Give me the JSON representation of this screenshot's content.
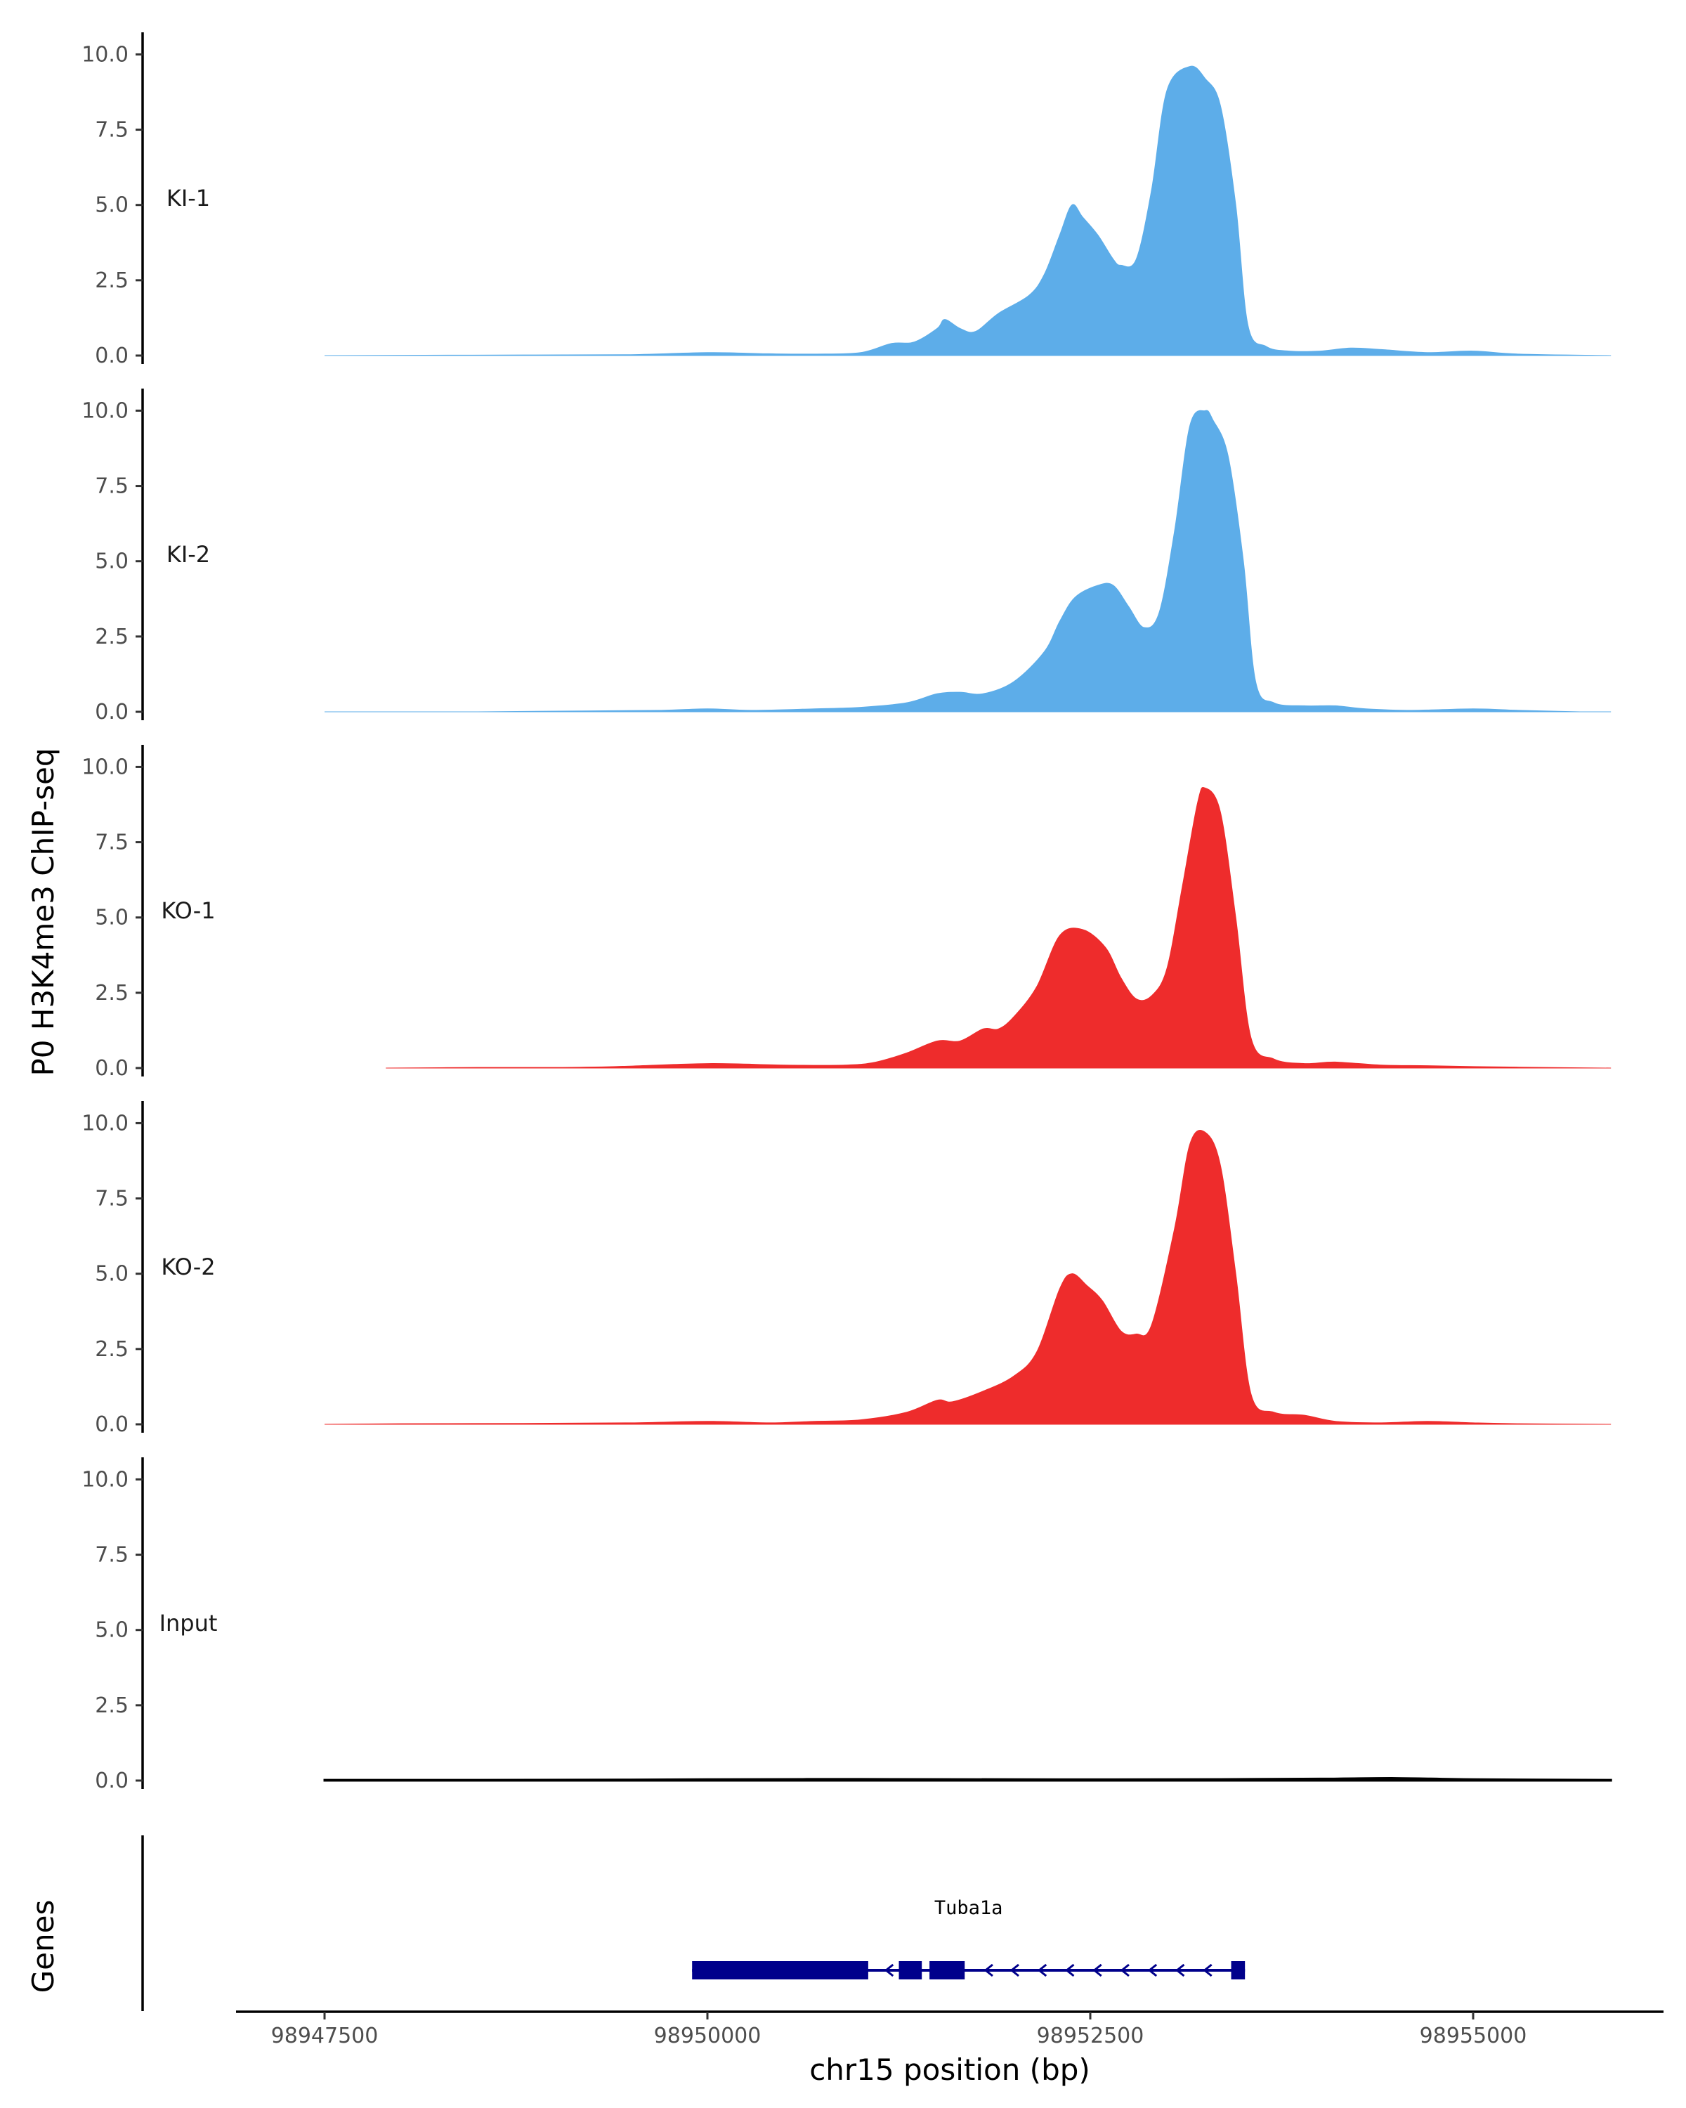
{
  "chart_data": {
    "type": "area",
    "ylabel": "P0 H3K4me3 ChIP-seq",
    "xlabel": "chr15 position (bp)",
    "genes_label": "Genes",
    "ylim": [
      0,
      10.5
    ],
    "y_ticks": [
      "0.0",
      "2.5",
      "5.0",
      "7.5",
      "10.0"
    ],
    "xlim": [
      98946800,
      98956400
    ],
    "x_ticks": [
      98947500,
      98950000,
      98952500,
      98955000
    ],
    "x_tick_labels": [
      "98947500",
      "98950000",
      "98952500",
      "98955000"
    ],
    "grid": false,
    "legend": "none",
    "tracks": [
      {
        "name": "KI-1",
        "color": "#5dade9",
        "x_range": [
          98947500,
          98955900
        ],
        "points": [
          [
            98947500,
            0
          ],
          [
            98948000,
            0.01
          ],
          [
            98948800,
            0.02
          ],
          [
            98949500,
            0.03
          ],
          [
            98950000,
            0.1
          ],
          [
            98950400,
            0.06
          ],
          [
            98950700,
            0.05
          ],
          [
            98951000,
            0.1
          ],
          [
            98951200,
            0.4
          ],
          [
            98951350,
            0.45
          ],
          [
            98951500,
            0.9
          ],
          [
            98951550,
            1.2
          ],
          [
            98951650,
            0.9
          ],
          [
            98951750,
            0.8
          ],
          [
            98951900,
            1.4
          ],
          [
            98952100,
            2.0
          ],
          [
            98952200,
            2.7
          ],
          [
            98952300,
            4.0
          ],
          [
            98952380,
            5.0
          ],
          [
            98952450,
            4.6
          ],
          [
            98952550,
            4.0
          ],
          [
            98952650,
            3.2
          ],
          [
            98952700,
            3.0
          ],
          [
            98952800,
            3.2
          ],
          [
            98952900,
            5.5
          ],
          [
            98953000,
            8.8
          ],
          [
            98953150,
            9.6
          ],
          [
            98953250,
            9.2
          ],
          [
            98953350,
            8.3
          ],
          [
            98953450,
            5.0
          ],
          [
            98953530,
            1.0
          ],
          [
            98953650,
            0.3
          ],
          [
            98953800,
            0.15
          ],
          [
            98954000,
            0.15
          ],
          [
            98954200,
            0.25
          ],
          [
            98954400,
            0.2
          ],
          [
            98954700,
            0.1
          ],
          [
            98955000,
            0.15
          ],
          [
            98955300,
            0.05
          ],
          [
            98955900,
            0
          ]
        ]
      },
      {
        "name": "KI-2",
        "color": "#5dade9",
        "x_range": [
          98947500,
          98955900
        ],
        "points": [
          [
            98947500,
            0
          ],
          [
            98948500,
            0
          ],
          [
            98949200,
            0.03
          ],
          [
            98949700,
            0.05
          ],
          [
            98950000,
            0.1
          ],
          [
            98950300,
            0.05
          ],
          [
            98950700,
            0.1
          ],
          [
            98951000,
            0.15
          ],
          [
            98951300,
            0.3
          ],
          [
            98951500,
            0.6
          ],
          [
            98951650,
            0.65
          ],
          [
            98951800,
            0.6
          ],
          [
            98952000,
            1.0
          ],
          [
            98952200,
            2.0
          ],
          [
            98952300,
            3.0
          ],
          [
            98952400,
            3.8
          ],
          [
            98952550,
            4.2
          ],
          [
            98952650,
            4.2
          ],
          [
            98952750,
            3.5
          ],
          [
            98952850,
            2.8
          ],
          [
            98952950,
            3.3
          ],
          [
            98953050,
            6.0
          ],
          [
            98953150,
            9.5
          ],
          [
            98953250,
            10.0
          ],
          [
            98953300,
            9.7
          ],
          [
            98953400,
            8.5
          ],
          [
            98953500,
            5.0
          ],
          [
            98953580,
            1.0
          ],
          [
            98953700,
            0.3
          ],
          [
            98953900,
            0.2
          ],
          [
            98954100,
            0.2
          ],
          [
            98954300,
            0.1
          ],
          [
            98954600,
            0.05
          ],
          [
            98955000,
            0.1
          ],
          [
            98955300,
            0.05
          ],
          [
            98955700,
            0
          ],
          [
            98955900,
            0
          ]
        ]
      },
      {
        "name": "KO-1",
        "color": "#ee2c2c",
        "x_range": [
          98947900,
          98955900
        ],
        "points": [
          [
            98947900,
            0
          ],
          [
            98948500,
            0.02
          ],
          [
            98949000,
            0.02
          ],
          [
            98949400,
            0.05
          ],
          [
            98950000,
            0.15
          ],
          [
            98950500,
            0.1
          ],
          [
            98950900,
            0.1
          ],
          [
            98951100,
            0.2
          ],
          [
            98951300,
            0.5
          ],
          [
            98951500,
            0.9
          ],
          [
            98951650,
            0.9
          ],
          [
            98951800,
            1.3
          ],
          [
            98951900,
            1.3
          ],
          [
            98952000,
            1.7
          ],
          [
            98952150,
            2.7
          ],
          [
            98952300,
            4.4
          ],
          [
            98952450,
            4.6
          ],
          [
            98952600,
            4.0
          ],
          [
            98952700,
            3.0
          ],
          [
            98952800,
            2.3
          ],
          [
            98952900,
            2.4
          ],
          [
            98953000,
            3.3
          ],
          [
            98953100,
            6.0
          ],
          [
            98953200,
            8.8
          ],
          [
            98953250,
            9.3
          ],
          [
            98953350,
            8.5
          ],
          [
            98953450,
            5.0
          ],
          [
            98953550,
            1.0
          ],
          [
            98953700,
            0.3
          ],
          [
            98953900,
            0.15
          ],
          [
            98954100,
            0.2
          ],
          [
            98954400,
            0.1
          ],
          [
            98954700,
            0.08
          ],
          [
            98955000,
            0.05
          ],
          [
            98955300,
            0.03
          ],
          [
            98955900,
            0
          ]
        ]
      },
      {
        "name": "KO-2",
        "color": "#ee2c2c",
        "x_range": [
          98947500,
          98955900
        ],
        "points": [
          [
            98947500,
            0
          ],
          [
            98948000,
            0.02
          ],
          [
            98948800,
            0.03
          ],
          [
            98949500,
            0.05
          ],
          [
            98950000,
            0.1
          ],
          [
            98950400,
            0.05
          ],
          [
            98950700,
            0.1
          ],
          [
            98951000,
            0.15
          ],
          [
            98951300,
            0.4
          ],
          [
            98951500,
            0.8
          ],
          [
            98951600,
            0.75
          ],
          [
            98951800,
            1.1
          ],
          [
            98952000,
            1.6
          ],
          [
            98952150,
            2.4
          ],
          [
            98952300,
            4.5
          ],
          [
            98952380,
            5.0
          ],
          [
            98952480,
            4.6
          ],
          [
            98952580,
            4.1
          ],
          [
            98952700,
            3.1
          ],
          [
            98952800,
            3.0
          ],
          [
            98952900,
            3.3
          ],
          [
            98953050,
            6.5
          ],
          [
            98953150,
            9.3
          ],
          [
            98953250,
            9.7
          ],
          [
            98953350,
            8.6
          ],
          [
            98953450,
            5.0
          ],
          [
            98953550,
            1.0
          ],
          [
            98953700,
            0.4
          ],
          [
            98953900,
            0.3
          ],
          [
            98954100,
            0.1
          ],
          [
            98954400,
            0.05
          ],
          [
            98954700,
            0.1
          ],
          [
            98955000,
            0.05
          ],
          [
            98955300,
            0.02
          ],
          [
            98955900,
            0
          ]
        ]
      },
      {
        "name": "Input",
        "color": "#000000",
        "x_range": [
          98947500,
          98955900
        ],
        "points": [
          [
            98947500,
            0.02
          ],
          [
            98948500,
            0.02
          ],
          [
            98949500,
            0.03
          ],
          [
            98950000,
            0.04
          ],
          [
            98951000,
            0.05
          ],
          [
            98952000,
            0.04
          ],
          [
            98953000,
            0.04
          ],
          [
            98954000,
            0.06
          ],
          [
            98954500,
            0.08
          ],
          [
            98955000,
            0.04
          ],
          [
            98955900,
            0.02
          ]
        ]
      }
    ],
    "gene": {
      "name": "Tuba1a",
      "color": "#00008b",
      "start": 98949900,
      "end": 98953510,
      "strand": "-",
      "exons": [
        [
          98949900,
          98951050
        ],
        [
          98951250,
          98951400
        ],
        [
          98951450,
          98951680
        ],
        [
          98953420,
          98953510
        ]
      ],
      "arrow_positions": [
        98951180,
        98951640,
        98951830,
        98952000,
        98952180,
        98952360,
        98952540,
        98952720,
        98952900,
        98953080,
        98953260
      ]
    }
  }
}
